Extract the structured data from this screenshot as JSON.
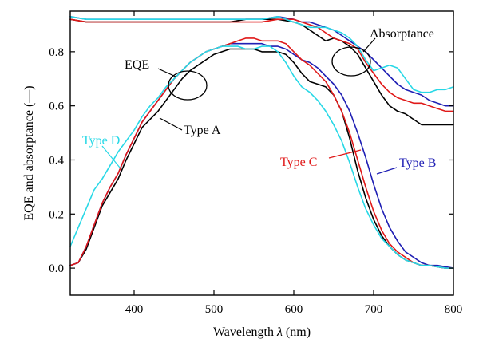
{
  "chart_data": {
    "type": "line",
    "xlabel_prefix": "Wavelength ",
    "xlabel_symbol": "λ",
    "xlabel_suffix": " (nm)",
    "ylabel": "EQE and absorptance (—)",
    "xlim": [
      320,
      800
    ],
    "ylim": [
      -0.1,
      0.95
    ],
    "xticks": [
      400,
      500,
      600,
      700,
      800
    ],
    "yticks": [
      0.0,
      0.2,
      0.4,
      0.6,
      0.8
    ],
    "ytick_labels": [
      "0.0",
      "0.2",
      "0.4",
      "0.6",
      "0.8"
    ],
    "legend": "none",
    "grid": false,
    "series": [
      {
        "name": "Type A",
        "group": "EQE",
        "color": "#000000",
        "x": [
          320,
          330,
          340,
          350,
          360,
          370,
          380,
          390,
          400,
          410,
          420,
          430,
          440,
          450,
          460,
          470,
          480,
          490,
          500,
          510,
          520,
          530,
          540,
          550,
          560,
          570,
          580,
          590,
          600,
          610,
          620,
          630,
          640,
          650,
          660,
          670,
          680,
          690,
          700,
          710,
          720,
          730,
          740,
          750,
          760,
          770,
          780,
          790,
          800
        ],
        "y": [
          0.01,
          0.02,
          0.07,
          0.15,
          0.23,
          0.28,
          0.33,
          0.4,
          0.46,
          0.52,
          0.55,
          0.58,
          0.62,
          0.66,
          0.7,
          0.73,
          0.75,
          0.77,
          0.79,
          0.8,
          0.81,
          0.81,
          0.81,
          0.81,
          0.8,
          0.8,
          0.8,
          0.79,
          0.76,
          0.72,
          0.69,
          0.68,
          0.67,
          0.64,
          0.58,
          0.48,
          0.36,
          0.26,
          0.18,
          0.12,
          0.08,
          0.05,
          0.03,
          0.02,
          0.01,
          0.01,
          0.005,
          0.0,
          0.0
        ]
      },
      {
        "name": "Type B",
        "group": "EQE",
        "color": "#1f1fb4",
        "x": [
          320,
          330,
          340,
          350,
          360,
          370,
          380,
          390,
          400,
          410,
          420,
          430,
          440,
          450,
          460,
          470,
          480,
          490,
          500,
          510,
          520,
          530,
          540,
          550,
          560,
          570,
          580,
          590,
          600,
          610,
          620,
          630,
          640,
          650,
          660,
          670,
          680,
          690,
          700,
          710,
          720,
          730,
          740,
          750,
          760,
          770,
          780,
          790,
          800
        ],
        "y": [
          0.01,
          0.02,
          0.08,
          0.16,
          0.24,
          0.3,
          0.35,
          0.42,
          0.48,
          0.54,
          0.58,
          0.62,
          0.66,
          0.7,
          0.73,
          0.76,
          0.78,
          0.8,
          0.81,
          0.82,
          0.83,
          0.83,
          0.83,
          0.83,
          0.83,
          0.82,
          0.82,
          0.81,
          0.79,
          0.77,
          0.76,
          0.74,
          0.71,
          0.68,
          0.64,
          0.58,
          0.5,
          0.41,
          0.31,
          0.22,
          0.15,
          0.1,
          0.06,
          0.04,
          0.02,
          0.01,
          0.01,
          0.005,
          0.0
        ]
      },
      {
        "name": "Type C",
        "group": "EQE",
        "color": "#e01919",
        "x": [
          320,
          330,
          340,
          350,
          360,
          370,
          380,
          390,
          400,
          410,
          420,
          430,
          440,
          450,
          460,
          470,
          480,
          490,
          500,
          510,
          520,
          530,
          540,
          550,
          560,
          570,
          580,
          590,
          600,
          610,
          620,
          630,
          640,
          650,
          660,
          670,
          680,
          690,
          700,
          710,
          720,
          730,
          740,
          750,
          760,
          770,
          780,
          790,
          800
        ],
        "y": [
          0.01,
          0.02,
          0.08,
          0.16,
          0.24,
          0.3,
          0.35,
          0.42,
          0.48,
          0.54,
          0.58,
          0.62,
          0.66,
          0.7,
          0.73,
          0.76,
          0.78,
          0.8,
          0.81,
          0.82,
          0.83,
          0.84,
          0.85,
          0.85,
          0.84,
          0.84,
          0.84,
          0.83,
          0.8,
          0.77,
          0.75,
          0.72,
          0.69,
          0.64,
          0.58,
          0.5,
          0.4,
          0.3,
          0.21,
          0.14,
          0.09,
          0.06,
          0.04,
          0.02,
          0.01,
          0.01,
          0.005,
          0.0,
          0.0
        ]
      },
      {
        "name": "Type D",
        "group": "EQE",
        "color": "#27d8e6",
        "x": [
          320,
          330,
          340,
          350,
          360,
          370,
          380,
          390,
          400,
          410,
          420,
          430,
          440,
          450,
          460,
          470,
          480,
          490,
          500,
          510,
          520,
          530,
          540,
          550,
          560,
          570,
          580,
          590,
          600,
          610,
          620,
          630,
          640,
          650,
          660,
          670,
          680,
          690,
          700,
          710,
          720,
          730,
          740,
          750,
          760,
          770,
          780,
          790,
          800
        ],
        "y": [
          0.08,
          0.15,
          0.22,
          0.29,
          0.33,
          0.38,
          0.43,
          0.47,
          0.51,
          0.56,
          0.6,
          0.63,
          0.67,
          0.7,
          0.73,
          0.76,
          0.78,
          0.8,
          0.81,
          0.82,
          0.82,
          0.82,
          0.81,
          0.81,
          0.82,
          0.82,
          0.8,
          0.76,
          0.71,
          0.67,
          0.65,
          0.62,
          0.58,
          0.53,
          0.47,
          0.39,
          0.3,
          0.22,
          0.16,
          0.11,
          0.08,
          0.05,
          0.03,
          0.02,
          0.01,
          0.01,
          0.005,
          0.0,
          0.0
        ]
      },
      {
        "name": "Type A",
        "group": "Absorptance",
        "color": "#000000",
        "x": [
          320,
          340,
          360,
          380,
          400,
          420,
          440,
          460,
          480,
          500,
          520,
          540,
          560,
          580,
          600,
          610,
          620,
          630,
          640,
          650,
          660,
          670,
          680,
          690,
          700,
          710,
          720,
          730,
          740,
          750,
          760,
          770,
          780,
          790,
          800
        ],
        "y": [
          0.92,
          0.91,
          0.91,
          0.91,
          0.91,
          0.91,
          0.91,
          0.91,
          0.91,
          0.91,
          0.91,
          0.92,
          0.92,
          0.92,
          0.91,
          0.9,
          0.88,
          0.86,
          0.84,
          0.85,
          0.84,
          0.82,
          0.79,
          0.74,
          0.69,
          0.64,
          0.6,
          0.58,
          0.57,
          0.55,
          0.53,
          0.53,
          0.53,
          0.53,
          0.53
        ]
      },
      {
        "name": "Type B",
        "group": "Absorptance",
        "color": "#1f1fb4",
        "x": [
          320,
          340,
          360,
          380,
          400,
          420,
          440,
          460,
          480,
          500,
          520,
          540,
          560,
          580,
          600,
          610,
          620,
          630,
          640,
          650,
          660,
          670,
          680,
          690,
          700,
          710,
          720,
          730,
          740,
          750,
          760,
          770,
          780,
          790,
          800
        ],
        "y": [
          0.93,
          0.92,
          0.92,
          0.92,
          0.92,
          0.92,
          0.92,
          0.92,
          0.92,
          0.92,
          0.92,
          0.92,
          0.92,
          0.93,
          0.92,
          0.91,
          0.91,
          0.9,
          0.89,
          0.88,
          0.86,
          0.84,
          0.82,
          0.8,
          0.77,
          0.74,
          0.71,
          0.68,
          0.66,
          0.65,
          0.64,
          0.62,
          0.61,
          0.6,
          0.6
        ]
      },
      {
        "name": "Type C",
        "group": "Absorptance",
        "color": "#e01919",
        "x": [
          320,
          340,
          360,
          380,
          400,
          420,
          440,
          460,
          480,
          500,
          520,
          540,
          560,
          580,
          600,
          610,
          620,
          630,
          640,
          650,
          660,
          670,
          680,
          690,
          700,
          710,
          720,
          730,
          740,
          750,
          760,
          770,
          780,
          790,
          800
        ],
        "y": [
          0.92,
          0.91,
          0.91,
          0.91,
          0.91,
          0.91,
          0.91,
          0.91,
          0.91,
          0.91,
          0.91,
          0.91,
          0.91,
          0.92,
          0.92,
          0.91,
          0.9,
          0.89,
          0.87,
          0.85,
          0.84,
          0.83,
          0.81,
          0.76,
          0.72,
          0.68,
          0.65,
          0.63,
          0.62,
          0.61,
          0.61,
          0.6,
          0.59,
          0.58,
          0.58
        ]
      },
      {
        "name": "Type D",
        "group": "Absorptance",
        "color": "#27d8e6",
        "x": [
          320,
          340,
          360,
          380,
          400,
          420,
          440,
          460,
          480,
          500,
          520,
          540,
          560,
          580,
          600,
          610,
          620,
          630,
          640,
          650,
          660,
          670,
          680,
          690,
          700,
          710,
          720,
          730,
          740,
          750,
          760,
          770,
          780,
          790,
          800
        ],
        "y": [
          0.93,
          0.92,
          0.92,
          0.92,
          0.92,
          0.92,
          0.92,
          0.92,
          0.92,
          0.92,
          0.92,
          0.92,
          0.92,
          0.93,
          0.91,
          0.9,
          0.89,
          0.89,
          0.89,
          0.88,
          0.87,
          0.85,
          0.82,
          0.77,
          0.73,
          0.74,
          0.75,
          0.74,
          0.7,
          0.66,
          0.65,
          0.65,
          0.66,
          0.66,
          0.67
        ]
      }
    ],
    "annotations": [
      {
        "text": "EQE",
        "color": "#000000",
        "target_x": 470,
        "target_y": 0.74
      },
      {
        "text": "Absorptance",
        "color": "#000000",
        "target_x": 672,
        "target_y": 0.82
      },
      {
        "text": "Type A",
        "color": "#000000",
        "target_x": 475,
        "target_y": 0.59
      },
      {
        "text": "Type D",
        "color": "#27d8e6",
        "target_x": 410,
        "target_y": 0.44
      },
      {
        "text": "Type C",
        "color": "#e01919",
        "target_x": 688,
        "target_y": 0.47
      },
      {
        "text": "Type B",
        "color": "#1f1fb4",
        "target_x": 705,
        "target_y": 0.41
      }
    ]
  }
}
